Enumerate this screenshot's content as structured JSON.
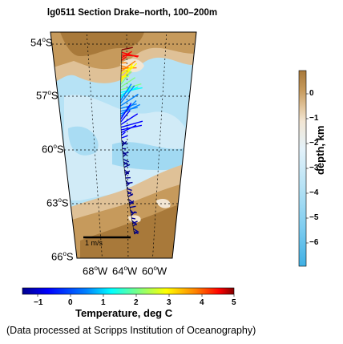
{
  "title": "lg0511 Section Drake–north, 100–200m",
  "lat_labels": [
    {
      "deg": "54",
      "hemi": "S"
    },
    {
      "deg": "57",
      "hemi": "S"
    },
    {
      "deg": "60",
      "hemi": "S"
    },
    {
      "deg": "63",
      "hemi": "S"
    },
    {
      "deg": "66",
      "hemi": "S"
    }
  ],
  "lon_labels": [
    {
      "deg": "68",
      "hemi": "W"
    },
    {
      "deg": "64",
      "hemi": "W"
    },
    {
      "deg": "60",
      "hemi": "W"
    }
  ],
  "scale_label": "1 m/s",
  "temp_colorbar": {
    "label": "Temperature, deg C",
    "ticks": [
      "−1",
      "0",
      "1",
      "2",
      "3",
      "4",
      "5"
    ],
    "range": [
      -1.5,
      5
    ],
    "colors": [
      "#00008f",
      "#0000ff",
      "#0080ff",
      "#00ffff",
      "#80ff80",
      "#ffff00",
      "#ff8000",
      "#ff0000",
      "#800000"
    ]
  },
  "depth_colorbar": {
    "label": "depth, km",
    "ticks": [
      "0",
      "−1",
      "−2",
      "−3",
      "−4",
      "−5",
      "−6"
    ],
    "colors": [
      "#a8793a",
      "#c69a5c",
      "#dfc197",
      "#f2e6d4",
      "#e4f2fa",
      "#b5e2f5",
      "#7fcdf0",
      "#3fb0e4"
    ]
  },
  "credit": "(Data processed at Scripps Institution of Oceanography)"
}
